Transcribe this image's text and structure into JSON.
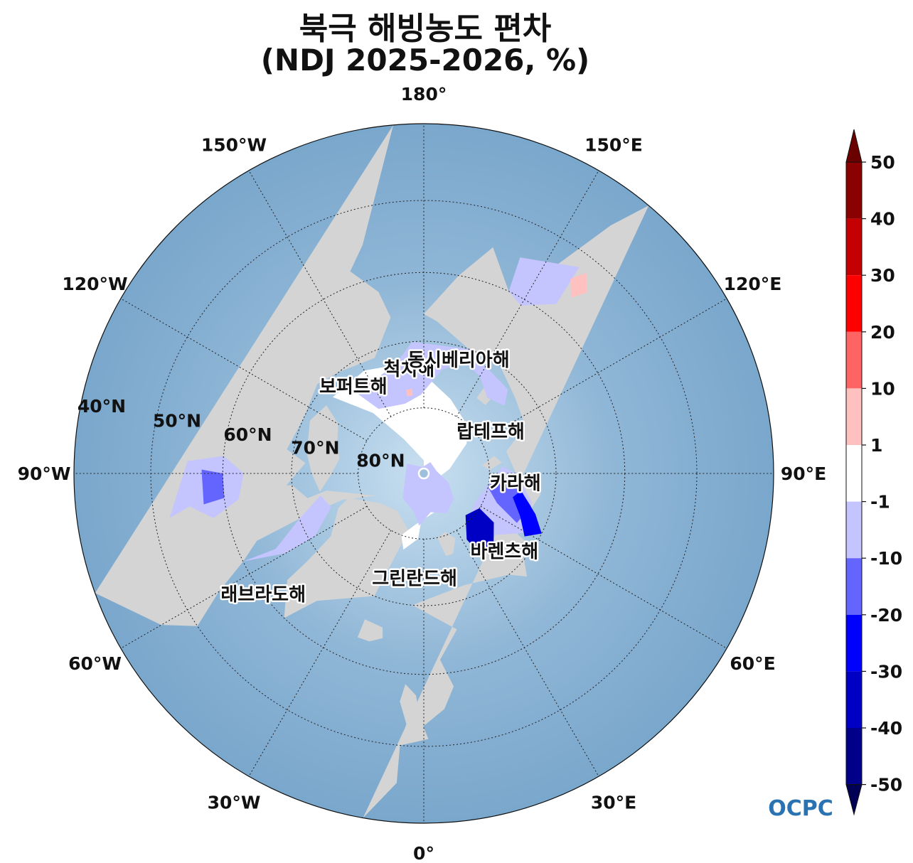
{
  "title": {
    "line1": "북극 해빙농도 편차",
    "line2": "(NDJ 2025-2026, %)"
  },
  "map": {
    "projection": "north-polar-stereographic",
    "center_lat": 90,
    "bottom_longitude": 0,
    "outer_boundary_lat": 40,
    "ocean_color": "#7aa7cc",
    "land_color": "#d4d4d4",
    "ice_color": "#ffffff",
    "longitude_labels": [
      {
        "lon": 180,
        "text": "180°"
      },
      {
        "lon": 150,
        "text": "150°E"
      },
      {
        "lon": 120,
        "text": "120°E"
      },
      {
        "lon": 90,
        "text": "90°E"
      },
      {
        "lon": 60,
        "text": "60°E"
      },
      {
        "lon": 30,
        "text": "30°E"
      },
      {
        "lon": 0,
        "text": "0°"
      },
      {
        "lon": -30,
        "text": "30°W"
      },
      {
        "lon": -60,
        "text": "60°W"
      },
      {
        "lon": -90,
        "text": "90°W"
      },
      {
        "lon": -120,
        "text": "120°W"
      },
      {
        "lon": -150,
        "text": "150°W"
      }
    ],
    "latitude_circles": [
      40,
      50,
      60,
      70,
      80
    ],
    "latitude_labels": [
      {
        "lat": 40,
        "text": "40°N"
      },
      {
        "lat": 50,
        "text": "50°N"
      },
      {
        "lat": 60,
        "text": "60°N"
      },
      {
        "lat": 70,
        "text": "70°N"
      },
      {
        "lat": 80,
        "text": "80°N"
      }
    ],
    "sea_labels": [
      {
        "name": "척치해",
        "lat": 74,
        "lon": -172
      },
      {
        "name": "동시베리아해",
        "lat": 72,
        "lon": 163
      },
      {
        "name": "보퍼트해",
        "lat": 73,
        "lon": -141
      },
      {
        "name": "랍테프해",
        "lat": 78,
        "lon": 122
      },
      {
        "name": "카라해",
        "lat": 76,
        "lon": 84
      },
      {
        "name": "바렌츠해",
        "lat": 73,
        "lon": 46
      },
      {
        "name": "그린란드해",
        "lat": 74,
        "lon": -5
      },
      {
        "name": "래브라도해",
        "lat": 60,
        "lon": -53
      }
    ]
  },
  "colorbar": {
    "ticks": [
      "50",
      "40",
      "30",
      "20",
      "10",
      "1",
      "-1",
      "-10",
      "-20",
      "-30",
      "-40",
      "-50"
    ],
    "colors": [
      "#8b0000",
      "#c40000",
      "#ff0000",
      "#ff6464",
      "#ffc0c0",
      "#ffffff",
      "#c4c4ff",
      "#6464ff",
      "#0000ff",
      "#0000c4",
      "#00008b"
    ],
    "over_color": "#6b0000",
    "under_color": "#000055"
  },
  "logo": {
    "text": "OCPC",
    "color": "#2a73b3"
  }
}
